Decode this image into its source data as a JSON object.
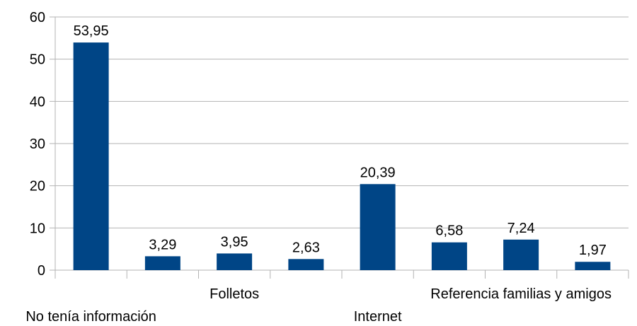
{
  "chart_data": {
    "type": "bar",
    "categories": [
      "No tenía información",
      "",
      "Folletos",
      "",
      "Internet",
      "",
      "Referencia familias y amigos",
      ""
    ],
    "values": [
      53.95,
      3.29,
      3.95,
      2.63,
      20.39,
      6.58,
      7.24,
      1.97
    ],
    "data_labels": [
      "53,95",
      "3,29",
      "3,95",
      "2,63",
      "20,39",
      "6,58",
      "7,24",
      "1,97"
    ],
    "yticks": [
      "0",
      "10",
      "20",
      "30",
      "40",
      "50",
      "60"
    ],
    "ylim": [
      0,
      60
    ],
    "title": "",
    "xlabel": "",
    "ylabel": "",
    "grid": true,
    "legend": "none",
    "colors": {
      "bar": "#004586",
      "grid": "#b3b3b3",
      "axis": "#b3b3b3"
    }
  }
}
